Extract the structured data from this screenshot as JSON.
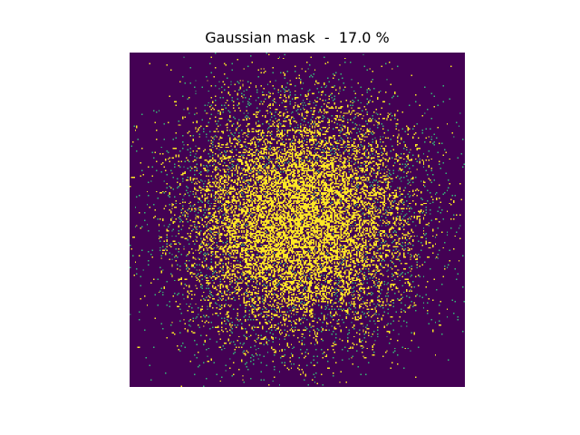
{
  "chart_data": {
    "type": "heatmap",
    "title": "Gaussian mask  -  17.0 %",
    "xlabel": "",
    "ylabel": "",
    "axes_visible": false,
    "grid": false,
    "colormap": "viridis",
    "colors": {
      "zero": "#440154",
      "one": "#fde725",
      "edge_pixel": "#35b779"
    },
    "mask": {
      "rows": 256,
      "cols": 256,
      "values": [
        0,
        1
      ],
      "distribution": "gaussian",
      "center": [
        128,
        128
      ],
      "fraction_sampled": 0.17,
      "fraction_sampled_label": "17.0 %"
    }
  }
}
